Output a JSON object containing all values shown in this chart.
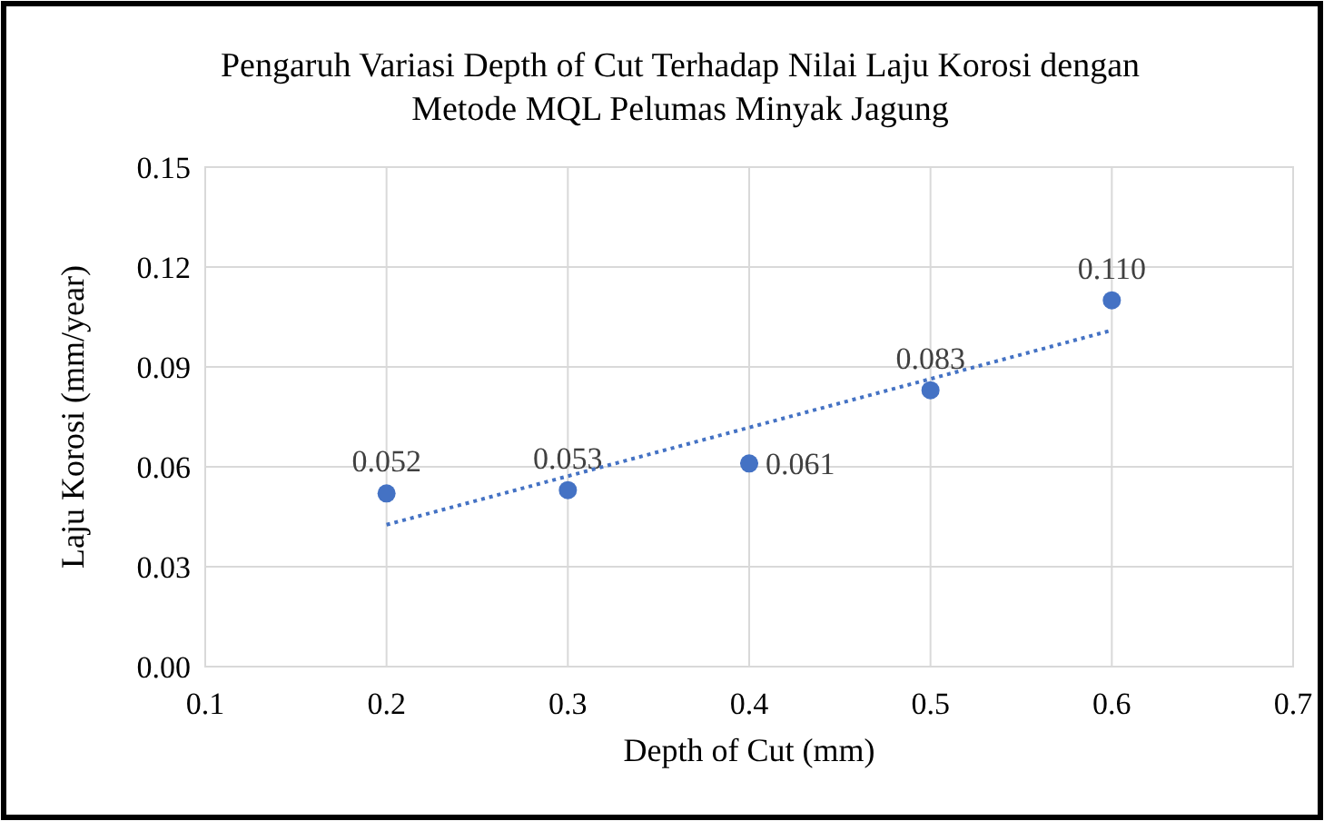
{
  "chart_data": {
    "type": "scatter",
    "title": "Pengaruh Variasi Depth of Cut Terhadap Nilai Laju Korosi dengan\nMetode MQL Pelumas Minyak Jagung",
    "xlabel": "Depth of Cut (mm)",
    "ylabel": "Laju Korosi (mm/year)",
    "xlim": [
      0.1,
      0.7
    ],
    "xticks": [
      0.1,
      0.2,
      0.3,
      0.4,
      0.5,
      0.6,
      0.7
    ],
    "ylim": [
      0,
      0.15
    ],
    "yticks": [
      {
        "value": 0,
        "label": "0.00"
      },
      {
        "value": 0.03,
        "label": "0.03"
      },
      {
        "value": 0.06,
        "label": "0.06"
      },
      {
        "value": 0.09,
        "label": "0.09"
      },
      {
        "value": 0.12,
        "label": "0.12"
      },
      {
        "value": 0.15,
        "label": "0.15"
      }
    ],
    "grid": true,
    "series": [
      {
        "color": "#4472c4",
        "marker": "circle",
        "x": [
          0.2,
          0.3,
          0.4,
          0.5,
          0.6
        ],
        "values": [
          0.052,
          0.053,
          0.061,
          0.083,
          0.11
        ],
        "value_labels": [
          "0.052",
          "0.053",
          "0.061",
          "0.083",
          "0.110"
        ]
      },
      {
        "type": "line",
        "color": "#4472c4",
        "line_style": "dotted",
        "x": [
          0.2,
          0.6
        ],
        "values": [
          0.0426,
          0.101
        ]
      }
    ]
  }
}
